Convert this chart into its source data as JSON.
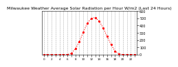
{
  "title": "Milwaukee Weather Average Solar Radiation per Hour W/m2 (Last 24 Hours)",
  "hours": [
    0,
    1,
    2,
    3,
    4,
    5,
    6,
    7,
    8,
    9,
    10,
    11,
    12,
    13,
    14,
    15,
    16,
    17,
    18,
    19,
    20,
    21,
    22,
    23
  ],
  "values": [
    0,
    0,
    0,
    0,
    0,
    0,
    2,
    20,
    80,
    180,
    310,
    430,
    500,
    510,
    460,
    370,
    250,
    140,
    50,
    10,
    1,
    0,
    0,
    0
  ],
  "line_color": "#ff0000",
  "bg_color": "#ffffff",
  "grid_color": "#aaaaaa",
  "ylabel_color": "#000000",
  "ylim": [
    0,
    600
  ],
  "yticks": [
    0,
    100,
    200,
    300,
    400,
    500,
    600
  ],
  "title_fontsize": 4.5,
  "tick_fontsize": 3.5,
  "marker": ".",
  "markersize": 2.5,
  "linewidth": 0.8
}
